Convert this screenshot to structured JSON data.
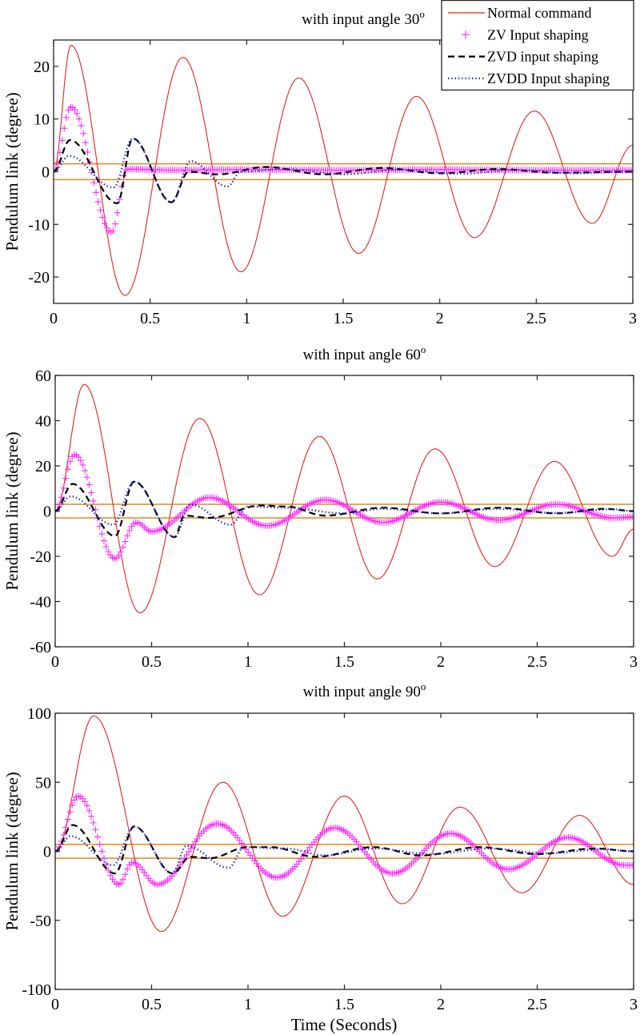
{
  "chart_data": [
    {
      "type": "line",
      "title": "with input angle 30",
      "title_superscript": "o",
      "xlabel": "",
      "ylabel": "Pendulum link (degree)",
      "xlim": [
        0,
        3
      ],
      "ylim": [
        -25,
        25
      ],
      "xticks": [
        0,
        0.5,
        1,
        1.5,
        2,
        2.5,
        3
      ],
      "xtick_labels": [
        "0",
        "0.5",
        "1",
        "1.5",
        "2",
        "2.5",
        "3"
      ],
      "yticks": [
        -20,
        -10,
        0,
        10,
        20
      ],
      "ytick_labels": [
        "-20",
        "-10",
        "0",
        "10",
        "20"
      ],
      "tolerance_band": [
        -1.5,
        1.5
      ],
      "legend": {
        "placement": "top-right",
        "entries": [
          "Normal command",
          "ZV Input shaping",
          "ZVD input shaping",
          "ZVDD Input shaping"
        ]
      },
      "series": [
        {
          "name": "Normal command",
          "color": "#e8231f",
          "style": "solid",
          "x": [
            0,
            0.09,
            0.37,
            0.67,
            0.97,
            1.27,
            1.58,
            1.88,
            2.18,
            2.49,
            2.79,
            3.0
          ],
          "y": [
            0,
            24,
            -23.5,
            21.7,
            -19,
            17.8,
            -15.5,
            14.3,
            -12.5,
            11.5,
            -9.8,
            5
          ]
        },
        {
          "name": "ZV Input shaping",
          "color": "#ff2bff",
          "style": "plus-markers",
          "x": [
            0,
            0.09,
            0.3,
            0.38,
            0.6,
            1.0,
            1.5,
            2.0,
            2.5,
            3.0
          ],
          "y": [
            0,
            12.3,
            -11.5,
            0.5,
            0.3,
            0.4,
            0.3,
            0.4,
            0.3,
            0.3
          ]
        },
        {
          "name": "ZVD input shaping",
          "color": "#000000",
          "style": "dashed",
          "x": [
            0,
            0.085,
            0.33,
            0.41,
            0.61,
            0.7,
            0.85,
            1.1,
            1.4,
            1.7,
            2.0,
            2.3,
            2.6,
            3.0
          ],
          "y": [
            0,
            6,
            -6,
            6.3,
            -5.8,
            0,
            -0.5,
            0.9,
            -0.5,
            0.7,
            -0.3,
            0.5,
            -0.2,
            0
          ]
        },
        {
          "name": "ZVDD Input shaping",
          "color": "#1f1fd6",
          "style": "dotted",
          "x": [
            0,
            0.08,
            0.31,
            0.41,
            0.61,
            0.71,
            0.9,
            0.97,
            1.2,
            1.5,
            1.8,
            2.1,
            2.4,
            2.7,
            3.0
          ],
          "y": [
            0,
            3,
            -3,
            6.3,
            -5.8,
            2,
            -2.8,
            0,
            0.5,
            -0.5,
            0.4,
            -0.4,
            0.3,
            -0.3,
            0
          ]
        }
      ]
    },
    {
      "type": "line",
      "title": "with input angle 60",
      "title_superscript": "o",
      "xlabel": "",
      "ylabel": "Pendulum link (degree)",
      "xlim": [
        0,
        3
      ],
      "ylim": [
        -60,
        60
      ],
      "xticks": [
        0,
        0.5,
        1,
        1.5,
        2,
        2.5,
        3
      ],
      "xtick_labels": [
        "0",
        "0.5",
        "1",
        "1.5",
        "2",
        "2.5",
        "3"
      ],
      "yticks": [
        -60,
        -40,
        -20,
        0,
        20,
        40,
        60
      ],
      "ytick_labels": [
        "-60",
        "-40",
        "-20",
        "0",
        "20",
        "40",
        "60"
      ],
      "tolerance_band": [
        -3,
        3
      ],
      "series": [
        {
          "name": "Normal command",
          "color": "#e8231f",
          "style": "solid",
          "x": [
            0,
            0.15,
            0.44,
            0.75,
            1.06,
            1.37,
            1.67,
            1.97,
            2.28,
            2.59,
            2.89,
            3.0
          ],
          "y": [
            0,
            56,
            -45,
            41,
            -37,
            33,
            -30,
            27.5,
            -24.5,
            22,
            -20,
            -8
          ]
        },
        {
          "name": "ZV Input shaping",
          "color": "#ff2bff",
          "style": "plus-markers",
          "x": [
            0,
            0.1,
            0.31,
            0.42,
            0.5,
            0.8,
            1.1,
            1.4,
            1.7,
            2.0,
            2.3,
            2.6,
            2.9,
            3.0
          ],
          "y": [
            0,
            25,
            -21,
            -5,
            -9,
            6,
            -6.5,
            5,
            -5,
            4,
            -4,
            3,
            -3,
            -2.5
          ]
        },
        {
          "name": "ZVD input shaping",
          "color": "#000000",
          "style": "dashed",
          "x": [
            0,
            0.09,
            0.31,
            0.41,
            0.62,
            0.67,
            0.8,
            1.07,
            1.2,
            1.4,
            1.7,
            2.0,
            2.3,
            2.6,
            2.85,
            3.0
          ],
          "y": [
            0,
            12,
            -11,
            13,
            -11.5,
            -2,
            -3,
            2.5,
            2,
            -2,
            1.5,
            -1,
            1.5,
            -1,
            1,
            0
          ]
        },
        {
          "name": "ZVDD Input shaping",
          "color": "#1f1fd6",
          "style": "dotted",
          "x": [
            0,
            0.08,
            0.3,
            0.41,
            0.62,
            0.7,
            0.91,
            1.0,
            1.2,
            1.5,
            1.7,
            2.0,
            2.3,
            2.6,
            2.9,
            3.0
          ],
          "y": [
            0,
            6.5,
            -6,
            13,
            -11.5,
            3,
            -6,
            2,
            1.5,
            -1,
            1,
            -1,
            1,
            -0.8,
            0.8,
            0
          ]
        }
      ]
    },
    {
      "type": "line",
      "title": "with input angle 90",
      "title_superscript": "o",
      "xlabel": "Time (Seconds)",
      "ylabel": "Pendulum link (degree)",
      "xlim": [
        0,
        3
      ],
      "ylim": [
        -100,
        100
      ],
      "xticks": [
        0,
        0.5,
        1,
        1.5,
        2,
        2.5,
        3
      ],
      "xtick_labels": [
        "0",
        "0.5",
        "1",
        "1.5",
        "2",
        "2.5",
        "3"
      ],
      "yticks": [
        -100,
        -50,
        0,
        50,
        100
      ],
      "ytick_labels": [
        "-100",
        "-50",
        "0",
        "50",
        "100"
      ],
      "tolerance_band": [
        -5,
        5
      ],
      "series": [
        {
          "name": "Normal command",
          "color": "#e8231f",
          "style": "solid",
          "x": [
            0,
            0.2,
            0.55,
            0.87,
            1.18,
            1.5,
            1.8,
            2.1,
            2.42,
            2.72,
            3.0
          ],
          "y": [
            0,
            98,
            -58,
            50,
            -47,
            40,
            -38,
            32,
            -30,
            26,
            -24
          ]
        },
        {
          "name": "ZV Input shaping",
          "color": "#ff2bff",
          "style": "plus-markers",
          "x": [
            0,
            0.12,
            0.33,
            0.4,
            0.53,
            0.84,
            1.15,
            1.45,
            1.75,
            2.05,
            2.35,
            2.66,
            2.95,
            3.0
          ],
          "y": [
            0,
            40,
            -24,
            -8,
            -24,
            20,
            -19,
            17,
            -16,
            13,
            -13,
            10,
            -10,
            -10
          ]
        },
        {
          "name": "ZVD input shaping",
          "color": "#000000",
          "style": "dashed",
          "x": [
            0,
            0.09,
            0.31,
            0.41,
            0.61,
            0.7,
            0.8,
            1.0,
            1.12,
            1.35,
            1.65,
            1.9,
            2.2,
            2.5,
            2.8,
            3.0
          ],
          "y": [
            0,
            19,
            -16,
            18,
            -16,
            -4,
            -5,
            3,
            3,
            -4,
            3,
            -3,
            3,
            -2,
            2,
            0
          ]
        },
        {
          "name": "ZVDD Input shaping",
          "color": "#1f1fd6",
          "style": "dotted",
          "x": [
            0,
            0.08,
            0.3,
            0.41,
            0.61,
            0.68,
            0.9,
            0.98,
            1.2,
            1.4,
            1.65,
            1.95,
            2.25,
            2.55,
            2.85,
            3.0
          ],
          "y": [
            0,
            11,
            -10,
            18,
            -16,
            4,
            -12,
            3,
            2,
            -3,
            2,
            -2,
            2,
            -1.5,
            1.5,
            0
          ]
        }
      ]
    }
  ]
}
